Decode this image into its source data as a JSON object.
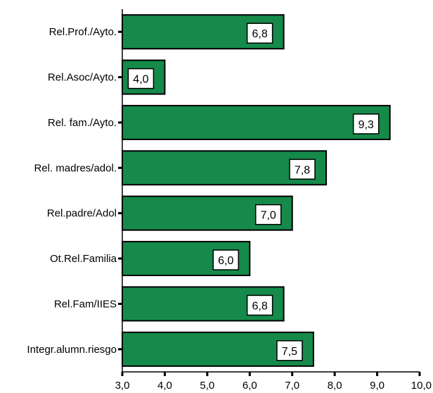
{
  "chart_data": {
    "type": "bar",
    "orientation": "horizontal",
    "categories": [
      "Rel.Prof./Ayto.",
      "Rel.Asoc/Ayto.",
      "Rel. fam./Ayto.",
      "Rel. madres/adol.",
      "Rel.padre/Adol",
      "Ot.Rel.Familia",
      "Rel.Fam/IIES",
      "Integr.alumn.riesgo"
    ],
    "values": [
      6.8,
      4.0,
      9.3,
      7.8,
      7.0,
      6.0,
      6.8,
      7.5
    ],
    "value_labels": [
      "6,8",
      "4,0",
      "9,3",
      "7,8",
      "7,0",
      "6,0",
      "6,8",
      "7,5"
    ],
    "xlim": [
      3.0,
      10.0
    ],
    "xticks": [
      3.0,
      4.0,
      5.0,
      6.0,
      7.0,
      8.0,
      9.0,
      10.0
    ],
    "xtick_labels": [
      "3,0",
      "4,0",
      "5,0",
      "6,0",
      "7,0",
      "8,0",
      "9,0",
      "10,0"
    ],
    "title": "",
    "xlabel": "",
    "ylabel": "",
    "grid": false,
    "legend": "none",
    "bar_color": "#158a4a",
    "bar_edge_color": "#000000"
  }
}
